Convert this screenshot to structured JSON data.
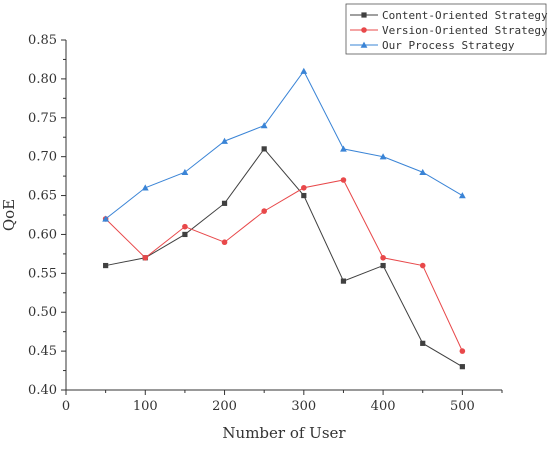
{
  "chart_data": {
    "type": "line",
    "x": [
      50,
      100,
      150,
      200,
      250,
      300,
      350,
      400,
      450,
      500
    ],
    "xlabel": "Number of User",
    "ylabel": "QoE",
    "xlim": [
      0,
      550
    ],
    "ylim": [
      0.4,
      0.85
    ],
    "x_ticks": [
      "0",
      "100",
      "200",
      "300",
      "400",
      "500"
    ],
    "y_ticks": [
      "0.40",
      "0.45",
      "0.50",
      "0.55",
      "0.60",
      "0.65",
      "0.70",
      "0.75",
      "0.80",
      "0.85"
    ],
    "grid": false,
    "legend_position": "top-right",
    "series": [
      {
        "name": "Content-Oriented Strategy",
        "marker": "square",
        "color": "#404040",
        "values": [
          0.56,
          0.57,
          0.6,
          0.64,
          0.71,
          0.65,
          0.54,
          0.56,
          0.46,
          0.43
        ]
      },
      {
        "name": "Version-Oriented Strategy",
        "marker": "circle",
        "color": "#e8484a",
        "values": [
          0.62,
          0.57,
          0.61,
          0.59,
          0.63,
          0.66,
          0.67,
          0.57,
          0.56,
          0.45
        ]
      },
      {
        "name": "Our Process Strategy",
        "marker": "triangle",
        "color": "#3a84d6",
        "values": [
          0.62,
          0.66,
          0.68,
          0.72,
          0.74,
          0.81,
          0.71,
          0.7,
          0.68,
          0.65
        ]
      }
    ]
  }
}
